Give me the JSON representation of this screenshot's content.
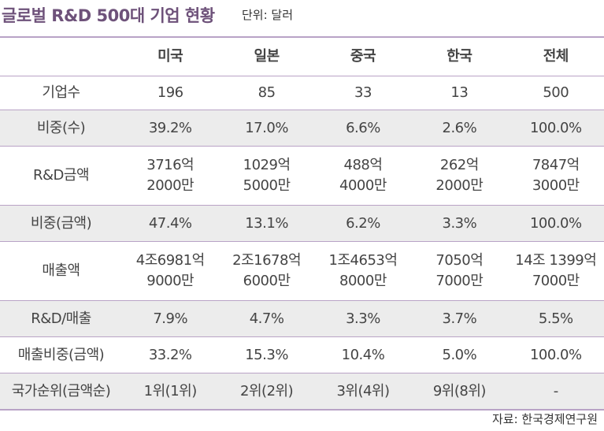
{
  "title": "글로벌 R&D 500대 기업 현황",
  "unit": "단위: 달러",
  "source": "자료: 한국경제연구원",
  "headers": [
    "",
    "미국",
    "일본",
    "중국",
    "한국",
    "전체"
  ],
  "rows": [
    {
      "label": "기업수",
      "cells": [
        [
          "196"
        ],
        [
          "85"
        ],
        [
          "33"
        ],
        [
          "13"
        ],
        [
          "500"
        ]
      ]
    },
    {
      "label": "비중(수)",
      "cells": [
        [
          "39.2%"
        ],
        [
          "17.0%"
        ],
        [
          "6.6%"
        ],
        [
          "2.6%"
        ],
        [
          "100.0%"
        ]
      ]
    },
    {
      "label": "R&D금액",
      "cells": [
        [
          "3716억",
          "2000만"
        ],
        [
          "1029억",
          "5000만"
        ],
        [
          "488억",
          "4000만"
        ],
        [
          "262억",
          "2000만"
        ],
        [
          "7847억",
          "3000만"
        ]
      ]
    },
    {
      "label": "비중(금액)",
      "cells": [
        [
          "47.4%"
        ],
        [
          "13.1%"
        ],
        [
          "6.2%"
        ],
        [
          "3.3%"
        ],
        [
          "100.0%"
        ]
      ]
    },
    {
      "label": "매출액",
      "cells": [
        [
          "4조6981억",
          "9000만"
        ],
        [
          "2조1678억",
          "6000만"
        ],
        [
          "1조4653억",
          "8000만"
        ],
        [
          "7050억",
          "7000만"
        ],
        [
          "14조 1399억",
          "7000만"
        ]
      ]
    },
    {
      "label": "R&D/매출",
      "cells": [
        [
          "7.9%"
        ],
        [
          "4.7%"
        ],
        [
          "3.3%"
        ],
        [
          "3.7%"
        ],
        [
          "5.5%"
        ]
      ]
    },
    {
      "label": "매출비중(금액)",
      "cells": [
        [
          "33.2%"
        ],
        [
          "15.3%"
        ],
        [
          "10.4%"
        ],
        [
          "5.0%"
        ],
        [
          "100.0%"
        ]
      ]
    },
    {
      "label": "국가순위(금액순)",
      "cells": [
        [
          "1위(1위)"
        ],
        [
          "2위(2위)"
        ],
        [
          "3위(4위)"
        ],
        [
          "9위(8위)"
        ],
        [
          "-"
        ]
      ]
    }
  ]
}
